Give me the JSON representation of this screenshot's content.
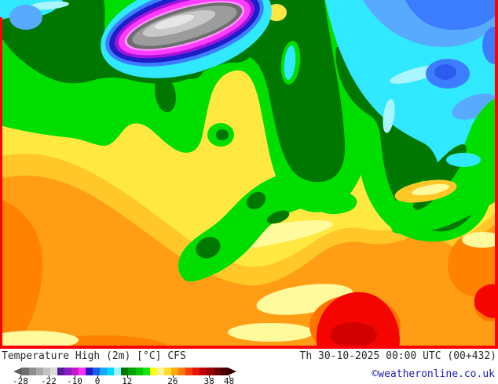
{
  "header": {
    "title": "Temperature High (2m) [°C] CFS",
    "datetime": "Th 30-10-2025 00:00 UTC (00+432)"
  },
  "legend": {
    "copyright": "©weatheronline.co.uk",
    "colorbar": {
      "unit": "°C",
      "arrow_left_color": "#606060",
      "arrow_right_color": "#3a0000",
      "segments": [
        "#6E6E6E",
        "#8E8E8E",
        "#A8A8A8",
        "#C2C2C2",
        "#DCDCDC",
        "#5A1996",
        "#8C19C8",
        "#C819C8",
        "#FF32FF",
        "#2A14C8",
        "#1460F0",
        "#14A8FF",
        "#00D8FF",
        "#A0F0FF",
        "#007800",
        "#00A000",
        "#00C800",
        "#14E614",
        "#FFFF14",
        "#FFF596",
        "#FFDC28",
        "#FFAA00",
        "#FF7800",
        "#FF3C00",
        "#E61400",
        "#BE0000",
        "#960000",
        "#6E0000",
        "#460000"
      ],
      "ticks": [
        {
          "label": "-28",
          "pct": 2.8
        },
        {
          "label": "-22",
          "pct": 15.6
        },
        {
          "label": "-10",
          "pct": 27.3
        },
        {
          "label": "0",
          "pct": 37.6
        },
        {
          "label": "12",
          "pct": 51.0
        },
        {
          "label": "26",
          "pct": 71.6
        },
        {
          "label": "38",
          "pct": 88.0
        },
        {
          "label": "48",
          "pct": 97.0
        }
      ]
    }
  },
  "map": {
    "description": "CFS model 2m high temperature field: cold grey/magenta core upper-left, cyan-blue cold air top and right bay, green mid-latitudes, yellow-orange warm south, red hot spots bottom",
    "palette": {
      "borderRed": "#FF0000",
      "orange": "#FF9E14",
      "orangeDark": "#FF8200",
      "orangeDeep": "#FF7300",
      "red": "#F50500",
      "redDark": "#D40000",
      "gold": "#FFC828",
      "yellow": "#FFE840",
      "paleYellow": "#FFFB9C",
      "green": "#00DE00",
      "greenDark": "#007800",
      "cyan": "#30E8FF",
      "cyanPale": "#A8F4FF",
      "skyBlue": "#58AAFF",
      "blue": "#3C7DFF",
      "blueDeep": "#2B5CF0",
      "navy": "#1E1EC8",
      "purple": "#A414DC",
      "magenta": "#FF3CFF",
      "pink": "#FF9EFF",
      "gray": "#9C9C9C",
      "grayDark": "#6E6E6E",
      "grayLight": "#C8C8C8",
      "grayPale": "#E6E6E6"
    }
  }
}
